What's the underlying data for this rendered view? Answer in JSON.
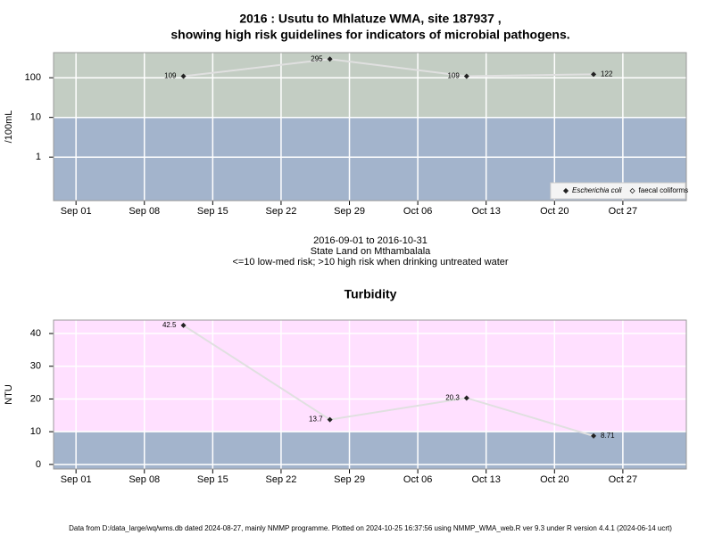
{
  "chart_data": [
    {
      "type": "line",
      "title": [
        "2016 : Usutu to Mhlatuze WMA, site 187937 ,",
        "showing high risk guidelines for indicators of microbial pathogens."
      ],
      "subtitle": [
        "2016-09-01 to 2016-10-31",
        "State Land on Mthambalala",
        "<=10 low-med risk; >10 high risk when drinking untreated water"
      ],
      "y_label": "/100mL",
      "log_y": true,
      "x": [
        11,
        26,
        40,
        53
      ],
      "xlim": [
        -2.3,
        62.5
      ],
      "xticks": [
        {
          "value": 0,
          "label": "Sep 01"
        },
        {
          "value": 7,
          "label": "Sep 08"
        },
        {
          "value": 14,
          "label": "Sep 15"
        },
        {
          "value": 21,
          "label": "Sep 22"
        },
        {
          "value": 28,
          "label": "Sep 29"
        },
        {
          "value": 35,
          "label": "Oct 06"
        },
        {
          "value": 42,
          "label": "Oct 13"
        },
        {
          "value": 49,
          "label": "Oct 20"
        },
        {
          "value": 56,
          "label": "Oct 27"
        }
      ],
      "ylim": [
        0.08,
        430
      ],
      "yticks": [
        1,
        10,
        100
      ],
      "grid": true,
      "bands": [
        {
          "from": 0.08,
          "to": 10,
          "color": "#a3b4cc"
        },
        {
          "from": 10,
          "to": 430,
          "color": "#c3cdc3"
        }
      ],
      "line_color": "#e0e0e0",
      "legend": "bottom right",
      "series": [
        {
          "name": "Escherichia coli",
          "color": "#222222",
          "values": [
            109,
            295,
            109,
            122
          ]
        },
        {
          "name": "faecal coliforms",
          "color": "#222222",
          "values": [
            null,
            null,
            null,
            null
          ]
        }
      ]
    },
    {
      "type": "line",
      "title": "Turbidity",
      "y_label": "NTU",
      "log_y": false,
      "x": [
        11,
        26,
        40,
        53
      ],
      "xlim": [
        -2.3,
        62.5
      ],
      "xticks": [
        {
          "value": 0,
          "label": "Sep 01"
        },
        {
          "value": 7,
          "label": "Sep 08"
        },
        {
          "value": 14,
          "label": "Sep 15"
        },
        {
          "value": 21,
          "label": "Sep 22"
        },
        {
          "value": 28,
          "label": "Sep 29"
        },
        {
          "value": 35,
          "label": "Oct 06"
        },
        {
          "value": 42,
          "label": "Oct 13"
        },
        {
          "value": 49,
          "label": "Oct 20"
        },
        {
          "value": 56,
          "label": "Oct 27"
        }
      ],
      "ylim": [
        -1.4,
        44.1
      ],
      "yticks": [
        0,
        10,
        20,
        30,
        40
      ],
      "grid": true,
      "bands": [
        {
          "from": -1.4,
          "to": 10,
          "color": "#a3b4cc"
        },
        {
          "from": 10,
          "to": 44.1,
          "color": "#ffe0ff"
        }
      ],
      "line_color": "#e0e0e0",
      "series": [
        {
          "color": "#222222",
          "values": [
            42.5,
            13.7,
            20.3,
            8.71
          ]
        }
      ]
    }
  ],
  "footer": "Data from D:/data_large/wq/wms.db dated 2024-08-27, mainly NMMP programme. Plotted on 2024-10-25 16:37:56 using NMMP_WMA_web.R ver 9.3 under R version 4.4.1 (2024-06-14 ucrt)"
}
